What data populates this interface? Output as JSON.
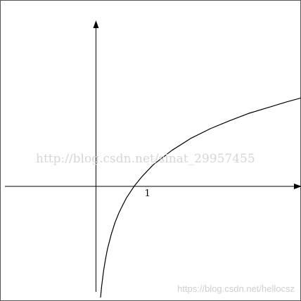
{
  "chart_data": {
    "type": "line",
    "function": "log",
    "x_tick_labels": [
      "1"
    ],
    "series": [
      {
        "x": [
          0.12,
          0.15,
          0.2,
          0.25,
          0.3,
          0.4,
          0.5,
          0.6,
          0.7,
          0.8,
          0.9,
          1.0,
          1.2,
          1.5,
          2.0,
          2.5,
          3.0,
          3.5,
          4.0,
          4.5,
          5.0,
          5.4
        ],
        "y": [
          -2.12,
          -1.9,
          -1.61,
          -1.39,
          -1.2,
          -0.92,
          -0.69,
          -0.51,
          -0.36,
          -0.22,
          -0.11,
          0.0,
          0.18,
          0.41,
          0.69,
          0.92,
          1.1,
          1.25,
          1.39,
          1.5,
          1.61,
          1.69
        ]
      }
    ],
    "xlim": [
      -2.5,
      5.4
    ],
    "ylim": [
      -2.2,
      3.3
    ],
    "grid": false,
    "axes_arrows": true,
    "line_color": "#000000"
  },
  "watermarks": {
    "main": "http://blog.csdn.net/sinat_29957455",
    "corner": "https://blog.csdn.net/hellocsz"
  }
}
